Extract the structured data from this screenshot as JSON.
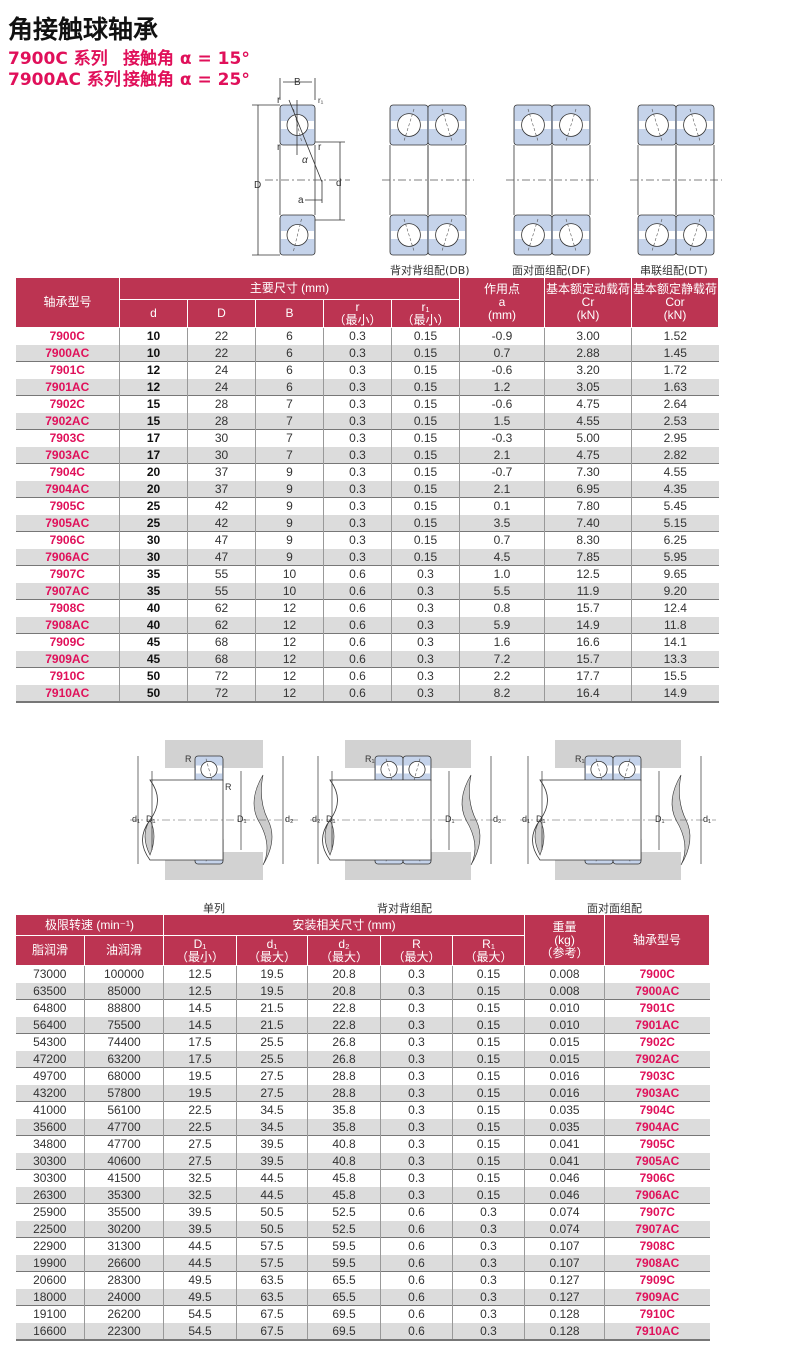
{
  "title": "角接触球轴承",
  "series": [
    {
      "name": "7900C 系列",
      "angle": "接触角 α = 15°"
    },
    {
      "name": "7900AC 系列",
      "angle": "接触角 α = 25°"
    }
  ],
  "top_diagrams": {
    "labels": {
      "B": "B",
      "r": "r",
      "r1": "r₁",
      "D": "D",
      "d": "d",
      "a": "a",
      "alpha": "α"
    },
    "captions": [
      "背对背组配(DB)",
      "面对面组配(DF)",
      "串联组配(DT)"
    ]
  },
  "mount_diagrams": {
    "labels": {
      "R": "R",
      "R1": "R₁",
      "d1": "d₁",
      "D1": "D₁",
      "d2": "d₂"
    },
    "captions": [
      "单列",
      "背对背组配",
      "面对面组配"
    ]
  },
  "colors": {
    "header": "#bc3452",
    "model_text": "#e0105a",
    "row_alt": "#dcdcdc",
    "bearing_fill": "#c5d3ea",
    "housing": "#d2d2d2"
  },
  "table1": {
    "headers": {
      "model": "轴承型号",
      "main_dims": "主要尺寸 (mm)",
      "d": "d",
      "D": "D",
      "B": "B",
      "r": "r",
      "r_sub": "（最小）",
      "r1": "r₁",
      "r1_sub": "（最小）",
      "a": "作用点",
      "a_sub1": "a",
      "a_sub2": "(mm)",
      "cr": "基本额定动载荷",
      "cr_sub1": "Cr",
      "cr_sub2": "(kN)",
      "cor": "基本额定静载荷",
      "cor_sub1": "Cor",
      "cor_sub2": "(kN)"
    },
    "rows": [
      [
        "7900C",
        "10",
        "22",
        "6",
        "0.3",
        "0.15",
        "-0.9",
        "3.00",
        "1.52"
      ],
      [
        "7900AC",
        "10",
        "22",
        "6",
        "0.3",
        "0.15",
        "0.7",
        "2.88",
        "1.45"
      ],
      [
        "7901C",
        "12",
        "24",
        "6",
        "0.3",
        "0.15",
        "-0.6",
        "3.20",
        "1.72"
      ],
      [
        "7901AC",
        "12",
        "24",
        "6",
        "0.3",
        "0.15",
        "1.2",
        "3.05",
        "1.63"
      ],
      [
        "7902C",
        "15",
        "28",
        "7",
        "0.3",
        "0.15",
        "-0.6",
        "4.75",
        "2.64"
      ],
      [
        "7902AC",
        "15",
        "28",
        "7",
        "0.3",
        "0.15",
        "1.5",
        "4.55",
        "2.53"
      ],
      [
        "7903C",
        "17",
        "30",
        "7",
        "0.3",
        "0.15",
        "-0.3",
        "5.00",
        "2.95"
      ],
      [
        "7903AC",
        "17",
        "30",
        "7",
        "0.3",
        "0.15",
        "2.1",
        "4.75",
        "2.82"
      ],
      [
        "7904C",
        "20",
        "37",
        "9",
        "0.3",
        "0.15",
        "-0.7",
        "7.30",
        "4.55"
      ],
      [
        "7904AC",
        "20",
        "37",
        "9",
        "0.3",
        "0.15",
        "2.1",
        "6.95",
        "4.35"
      ],
      [
        "7905C",
        "25",
        "42",
        "9",
        "0.3",
        "0.15",
        "0.1",
        "7.80",
        "5.45"
      ],
      [
        "7905AC",
        "25",
        "42",
        "9",
        "0.3",
        "0.15",
        "3.5",
        "7.40",
        "5.15"
      ],
      [
        "7906C",
        "30",
        "47",
        "9",
        "0.3",
        "0.15",
        "0.7",
        "8.30",
        "6.25"
      ],
      [
        "7906AC",
        "30",
        "47",
        "9",
        "0.3",
        "0.15",
        "4.5",
        "7.85",
        "5.95"
      ],
      [
        "7907C",
        "35",
        "55",
        "10",
        "0.6",
        "0.3",
        "1.0",
        "12.5",
        "9.65"
      ],
      [
        "7907AC",
        "35",
        "55",
        "10",
        "0.6",
        "0.3",
        "5.5",
        "11.9",
        "9.20"
      ],
      [
        "7908C",
        "40",
        "62",
        "12",
        "0.6",
        "0.3",
        "0.8",
        "15.7",
        "12.4"
      ],
      [
        "7908AC",
        "40",
        "62",
        "12",
        "0.6",
        "0.3",
        "5.9",
        "14.9",
        "11.8"
      ],
      [
        "7909C",
        "45",
        "68",
        "12",
        "0.6",
        "0.3",
        "1.6",
        "16.6",
        "14.1"
      ],
      [
        "7909AC",
        "45",
        "68",
        "12",
        "0.6",
        "0.3",
        "7.2",
        "15.7",
        "13.3"
      ],
      [
        "7910C",
        "50",
        "72",
        "12",
        "0.6",
        "0.3",
        "2.2",
        "17.7",
        "15.5"
      ],
      [
        "7910AC",
        "50",
        "72",
        "12",
        "0.6",
        "0.3",
        "8.2",
        "16.4",
        "14.9"
      ]
    ]
  },
  "table2": {
    "headers": {
      "speed": "极限转速 (min⁻¹)",
      "grease": "脂润滑",
      "oil": "油润滑",
      "mount_dims": "安装相关尺寸 (mm)",
      "D1": "D₁",
      "D1_sub": "（最小）",
      "d1": "d₁",
      "d1_sub": "（最大）",
      "d2": "d₂",
      "d2_sub": "（最大）",
      "R": "R",
      "R_sub": "（最大）",
      "R1": "R₁",
      "R1_sub": "（最大）",
      "weight": "重量",
      "weight_sub1": "(kg)",
      "weight_sub2": "（参考）",
      "model": "轴承型号"
    },
    "rows": [
      [
        "73000",
        "100000",
        "12.5",
        "19.5",
        "20.8",
        "0.3",
        "0.15",
        "0.008",
        "7900C"
      ],
      [
        "63500",
        "85000",
        "12.5",
        "19.5",
        "20.8",
        "0.3",
        "0.15",
        "0.008",
        "7900AC"
      ],
      [
        "64800",
        "88800",
        "14.5",
        "21.5",
        "22.8",
        "0.3",
        "0.15",
        "0.010",
        "7901C"
      ],
      [
        "56400",
        "75500",
        "14.5",
        "21.5",
        "22.8",
        "0.3",
        "0.15",
        "0.010",
        "7901AC"
      ],
      [
        "54300",
        "74400",
        "17.5",
        "25.5",
        "26.8",
        "0.3",
        "0.15",
        "0.015",
        "7902C"
      ],
      [
        "47200",
        "63200",
        "17.5",
        "25.5",
        "26.8",
        "0.3",
        "0.15",
        "0.015",
        "7902AC"
      ],
      [
        "49700",
        "68000",
        "19.5",
        "27.5",
        "28.8",
        "0.3",
        "0.15",
        "0.016",
        "7903C"
      ],
      [
        "43200",
        "57800",
        "19.5",
        "27.5",
        "28.8",
        "0.3",
        "0.15",
        "0.016",
        "7903AC"
      ],
      [
        "41000",
        "56100",
        "22.5",
        "34.5",
        "35.8",
        "0.3",
        "0.15",
        "0.035",
        "7904C"
      ],
      [
        "35600",
        "47700",
        "22.5",
        "34.5",
        "35.8",
        "0.3",
        "0.15",
        "0.035",
        "7904AC"
      ],
      [
        "34800",
        "47700",
        "27.5",
        "39.5",
        "40.8",
        "0.3",
        "0.15",
        "0.041",
        "7905C"
      ],
      [
        "30300",
        "40600",
        "27.5",
        "39.5",
        "40.8",
        "0.3",
        "0.15",
        "0.041",
        "7905AC"
      ],
      [
        "30300",
        "41500",
        "32.5",
        "44.5",
        "45.8",
        "0.3",
        "0.15",
        "0.046",
        "7906C"
      ],
      [
        "26300",
        "35300",
        "32.5",
        "44.5",
        "45.8",
        "0.3",
        "0.15",
        "0.046",
        "7906AC"
      ],
      [
        "25900",
        "35500",
        "39.5",
        "50.5",
        "52.5",
        "0.6",
        "0.3",
        "0.074",
        "7907C"
      ],
      [
        "22500",
        "30200",
        "39.5",
        "50.5",
        "52.5",
        "0.6",
        "0.3",
        "0.074",
        "7907AC"
      ],
      [
        "22900",
        "31300",
        "44.5",
        "57.5",
        "59.5",
        "0.6",
        "0.3",
        "0.107",
        "7908C"
      ],
      [
        "19900",
        "26600",
        "44.5",
        "57.5",
        "59.5",
        "0.6",
        "0.3",
        "0.107",
        "7908AC"
      ],
      [
        "20600",
        "28300",
        "49.5",
        "63.5",
        "65.5",
        "0.6",
        "0.3",
        "0.127",
        "7909C"
      ],
      [
        "18000",
        "24000",
        "49.5",
        "63.5",
        "65.5",
        "0.6",
        "0.3",
        "0.127",
        "7909AC"
      ],
      [
        "19100",
        "26200",
        "54.5",
        "67.5",
        "69.5",
        "0.6",
        "0.3",
        "0.128",
        "7910C"
      ],
      [
        "16600",
        "22300",
        "54.5",
        "67.5",
        "69.5",
        "0.6",
        "0.3",
        "0.128",
        "7910AC"
      ]
    ]
  }
}
